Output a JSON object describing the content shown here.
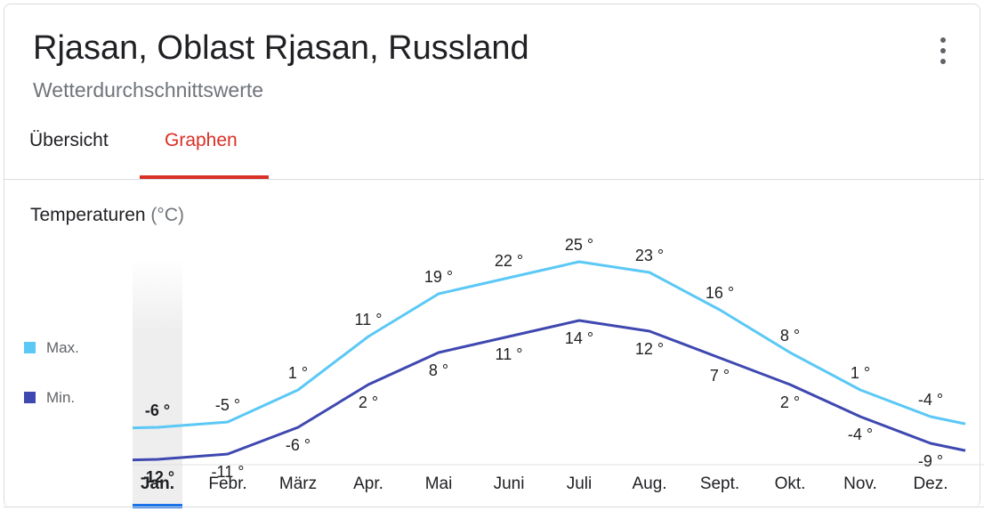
{
  "header": {
    "title": "Rjasan, Oblast Rjasan, Russland",
    "subtitle": "Wetterdurchschnittswerte",
    "more_icon": "more-vert-icon"
  },
  "tabs": [
    {
      "label": "Übersicht",
      "selected": false
    },
    {
      "label": "Graphen",
      "selected": true
    }
  ],
  "section": {
    "title": "Temperaturen",
    "unit": "(°C)"
  },
  "colors": {
    "max": "#5bc8f5",
    "min": "#3f48b0",
    "tab_active": "#d93025",
    "highlight": "#eeeeee",
    "selected_bar": "#1a73e8"
  },
  "chart_data": {
    "type": "line",
    "title": "Temperaturen (°C)",
    "categories": [
      "Jan.",
      "Febr.",
      "März",
      "Apr.",
      "Mai",
      "Juni",
      "Juli",
      "Aug.",
      "Sept.",
      "Okt.",
      "Nov.",
      "Dez."
    ],
    "selected_category": "Jan.",
    "legend": "left",
    "grid": false,
    "series": [
      {
        "name": "Max.",
        "values": [
          -6,
          -5,
          1,
          11,
          19,
          22,
          25,
          23,
          16,
          8,
          1,
          -4
        ],
        "labels": [
          "-6 °",
          "-5 °",
          "1 °",
          "11 °",
          "19 °",
          "22 °",
          "25 °",
          "23 °",
          "16 °",
          "8 °",
          "1 °",
          "-4 °"
        ]
      },
      {
        "name": "Min.",
        "values": [
          -12,
          -11,
          -6,
          2,
          8,
          11,
          14,
          12,
          7,
          2,
          -4,
          -9
        ],
        "labels": [
          "-12 °",
          "-11 °",
          "-6 °",
          "2 °",
          "8 °",
          "11 °",
          "14 °",
          "12 °",
          "7 °",
          "2 °",
          "-4 °",
          "-9 °"
        ]
      }
    ]
  }
}
